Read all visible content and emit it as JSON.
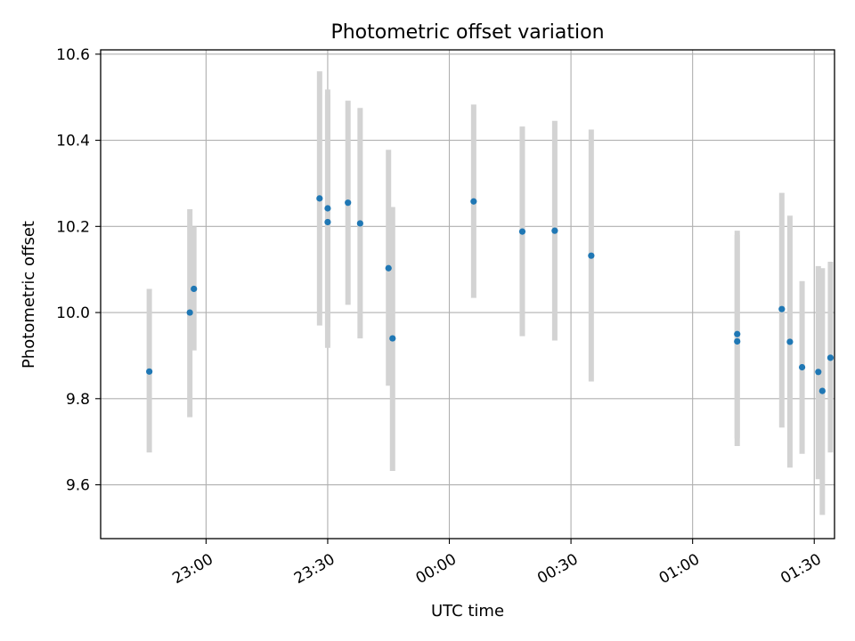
{
  "chart_data": {
    "type": "scatter",
    "title": "Photometric offset variation",
    "xlabel": "UTC time",
    "ylabel": "Photometric offset",
    "x_unit": "time HH:MM",
    "xlim": [
      "22:34",
      "01:35"
    ],
    "ylim": [
      9.475,
      10.61
    ],
    "x_ticks": [
      "23:00",
      "23:30",
      "00:00",
      "00:30",
      "01:00",
      "01:30"
    ],
    "y_ticks": [
      "9.6",
      "9.8",
      "10.0",
      "10.2",
      "10.4",
      "10.6"
    ],
    "grid": true,
    "series": [
      {
        "points": [
          {
            "t": "22:46",
            "y": 9.863,
            "low": 9.675,
            "high": 10.055
          },
          {
            "t": "22:56",
            "y": 10.0,
            "low": 9.757,
            "high": 10.24
          },
          {
            "t": "22:57",
            "y": 10.055,
            "low": 9.912,
            "high": 10.2
          },
          {
            "t": "23:28",
            "y": 10.265,
            "low": 9.97,
            "high": 10.56
          },
          {
            "t": "23:30",
            "y": 10.21,
            "low": 9.918,
            "high": 10.505
          },
          {
            "t": "23:30",
            "y": 10.242,
            "low": 9.965,
            "high": 10.518
          },
          {
            "t": "23:35",
            "y": 10.255,
            "low": 10.018,
            "high": 10.492
          },
          {
            "t": "23:38",
            "y": 10.207,
            "low": 9.94,
            "high": 10.475
          },
          {
            "t": "23:45",
            "y": 10.103,
            "low": 9.83,
            "high": 10.378
          },
          {
            "t": "23:46",
            "y": 9.94,
            "low": 9.632,
            "high": 10.245
          },
          {
            "t": "00:06",
            "y": 10.258,
            "low": 10.034,
            "high": 10.483
          },
          {
            "t": "00:18",
            "y": 10.188,
            "low": 9.945,
            "high": 10.432
          },
          {
            "t": "00:26",
            "y": 10.19,
            "low": 9.935,
            "high": 10.445
          },
          {
            "t": "00:35",
            "y": 10.132,
            "low": 9.84,
            "high": 10.425
          },
          {
            "t": "01:11",
            "y": 9.933,
            "low": 9.69,
            "high": 10.18
          },
          {
            "t": "01:11",
            "y": 9.95,
            "low": 9.708,
            "high": 10.19
          },
          {
            "t": "01:22",
            "y": 10.008,
            "low": 9.733,
            "high": 10.278
          },
          {
            "t": "01:24",
            "y": 9.932,
            "low": 9.64,
            "high": 10.225
          },
          {
            "t": "01:27",
            "y": 9.873,
            "low": 9.672,
            "high": 10.073
          },
          {
            "t": "01:31",
            "y": 9.862,
            "low": 9.613,
            "high": 10.108
          },
          {
            "t": "01:32",
            "y": 9.818,
            "low": 9.53,
            "high": 10.103
          },
          {
            "t": "01:34",
            "y": 9.895,
            "low": 9.675,
            "high": 10.118
          }
        ]
      }
    ],
    "colors": {
      "point": "#1f77b4",
      "errorbar": "#d3d3d3",
      "grid": "#b0b0b0"
    }
  }
}
